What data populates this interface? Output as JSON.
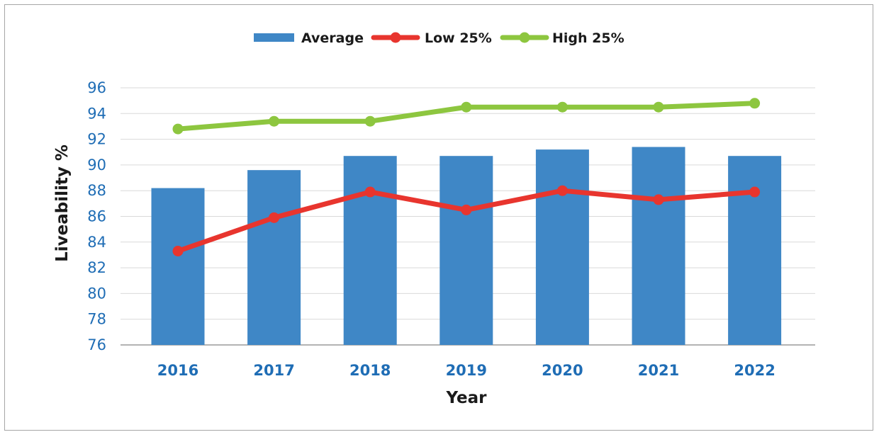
{
  "chart_data": {
    "type": "bar+line",
    "categories": [
      "2016",
      "2017",
      "2018",
      "2019",
      "2020",
      "2021",
      "2022"
    ],
    "series": [
      {
        "name": "Average",
        "kind": "bar",
        "color": "#3f87c6",
        "values": [
          88.2,
          89.6,
          90.7,
          90.7,
          91.2,
          91.4,
          90.7
        ]
      },
      {
        "name": "Low 25%",
        "kind": "line",
        "color": "#e8352e",
        "values": [
          83.3,
          85.9,
          87.9,
          86.5,
          88.0,
          87.3,
          87.9
        ]
      },
      {
        "name": "High 25%",
        "kind": "line",
        "color": "#8dc63f",
        "values": [
          92.8,
          93.4,
          93.4,
          94.5,
          94.5,
          94.5,
          94.8
        ]
      }
    ],
    "yticks": [
      76,
      78,
      80,
      82,
      84,
      86,
      88,
      90,
      92,
      94,
      96
    ],
    "ylim": [
      76,
      96
    ],
    "xlabel": "Year",
    "ylabel": "Liveability %",
    "grid": true,
    "legend": "top"
  }
}
